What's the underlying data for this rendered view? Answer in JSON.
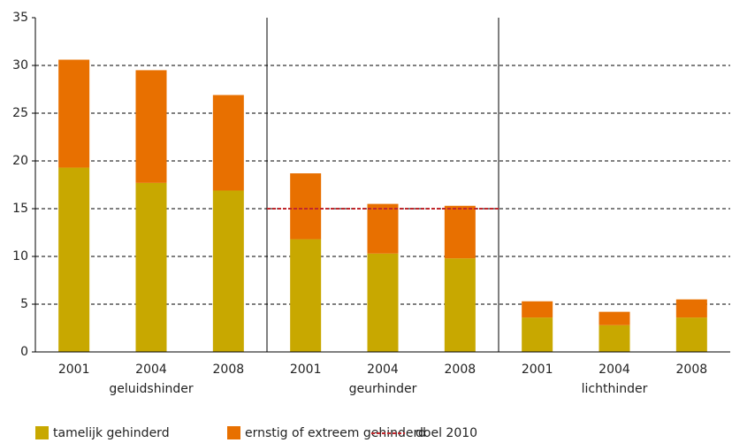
{
  "chart_data": {
    "type": "grouped-stacked-bar",
    "groups": [
      "geluidshinder",
      "geurhinder",
      "lichthinder"
    ],
    "categories": [
      "2001",
      "2004",
      "2008",
      "2001",
      "2004",
      "2008",
      "2001",
      "2004",
      "2008"
    ],
    "series": [
      {
        "name": "tamelijk gehinderd",
        "color": "#c8a800",
        "values": [
          19.3,
          17.7,
          16.9,
          11.8,
          10.3,
          9.8,
          3.6,
          2.8,
          3.6
        ]
      },
      {
        "name": "ernstig of extreem gehinderd",
        "color": "#e87000",
        "values": [
          11.3,
          11.8,
          10.0,
          6.9,
          5.2,
          5.5,
          1.7,
          1.4,
          1.9
        ]
      }
    ],
    "target": {
      "name": "doel 2010",
      "value": 15,
      "group": 1,
      "color": "#c0282d"
    },
    "ylim": [
      0,
      35
    ],
    "yticks": [
      0,
      5,
      10,
      15,
      20,
      25,
      30,
      35
    ],
    "grid": true
  }
}
